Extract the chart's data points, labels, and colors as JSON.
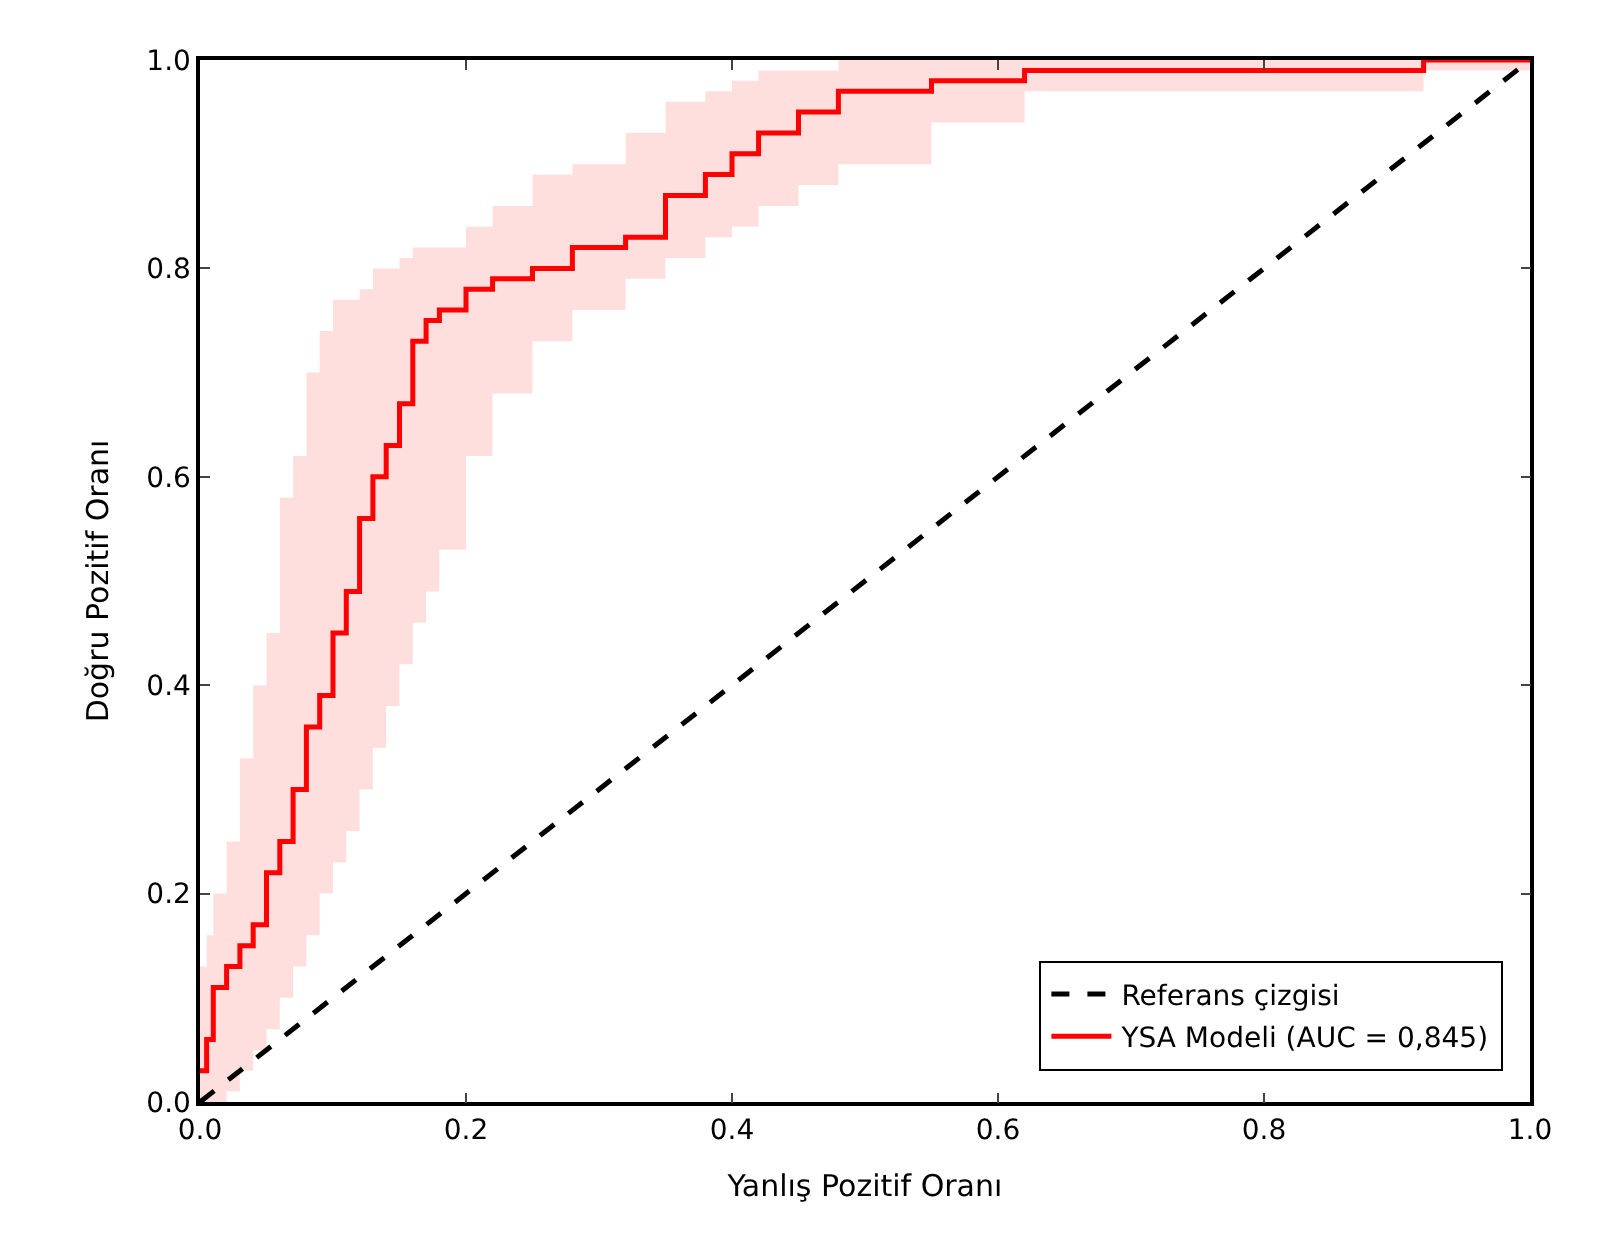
{
  "chart_data": {
    "type": "line",
    "xlabel": "Yanlış Pozitif Oranı",
    "ylabel": "Doğru Pozitif Oranı",
    "xlim": [
      0,
      1
    ],
    "ylim": [
      0,
      1
    ],
    "xticks": [
      {
        "value": 0,
        "label": "0.0"
      },
      {
        "value": 0.2,
        "label": "0.2"
      },
      {
        "value": 0.4,
        "label": "0.4"
      },
      {
        "value": 0.6,
        "label": "0.6"
      },
      {
        "value": 0.8,
        "label": "0.8"
      },
      {
        "value": 1,
        "label": "1.0"
      }
    ],
    "yticks": [
      {
        "value": 0,
        "label": "0.0"
      },
      {
        "value": 0.2,
        "label": "0.2"
      },
      {
        "value": 0.4,
        "label": "0.4"
      },
      {
        "value": 0.6,
        "label": "0.6"
      },
      {
        "value": 0.8,
        "label": "0.8"
      },
      {
        "value": 1,
        "label": "1.0"
      }
    ],
    "legend": "bottom right",
    "marker": "none",
    "series": [
      {
        "name": "Referans çizgisi",
        "line_style": "dashed",
        "color": "#000000",
        "x": [
          0,
          1
        ],
        "values": [
          0,
          1
        ]
      },
      {
        "name": "YSA Modeli (AUC = 0,845)",
        "type": "step",
        "line_style": "solid",
        "color": "#ff0000",
        "x": [
          0,
          0.005,
          0.01,
          0.02,
          0.03,
          0.04,
          0.05,
          0.06,
          0.07,
          0.08,
          0.09,
          0.1,
          0.11,
          0.12,
          0.13,
          0.14,
          0.15,
          0.16,
          0.17,
          0.18,
          0.2,
          0.22,
          0.25,
          0.28,
          0.32,
          0.35,
          0.38,
          0.4,
          0.42,
          0.45,
          0.48,
          0.55,
          0.62,
          0.92,
          1.0
        ],
        "values": [
          0.03,
          0.06,
          0.11,
          0.13,
          0.15,
          0.17,
          0.22,
          0.25,
          0.3,
          0.36,
          0.39,
          0.45,
          0.49,
          0.56,
          0.6,
          0.63,
          0.67,
          0.73,
          0.75,
          0.76,
          0.78,
          0.79,
          0.8,
          0.82,
          0.83,
          0.87,
          0.89,
          0.91,
          0.93,
          0.95,
          0.97,
          0.98,
          0.99,
          1.0,
          1.0
        ],
        "upper": [
          0.13,
          0.16,
          0.2,
          0.25,
          0.33,
          0.4,
          0.45,
          0.58,
          0.62,
          0.7,
          0.74,
          0.77,
          0.77,
          0.78,
          0.8,
          0.8,
          0.81,
          0.82,
          0.82,
          0.82,
          0.84,
          0.86,
          0.89,
          0.9,
          0.93,
          0.96,
          0.97,
          0.98,
          0.99,
          0.99,
          1.0,
          1.0,
          1.0,
          1.0,
          1.0
        ],
        "lower": [
          0,
          0,
          0,
          0.01,
          0.03,
          0.05,
          0.07,
          0.1,
          0.13,
          0.16,
          0.2,
          0.23,
          0.26,
          0.3,
          0.34,
          0.38,
          0.42,
          0.46,
          0.49,
          0.53,
          0.62,
          0.68,
          0.73,
          0.76,
          0.79,
          0.81,
          0.83,
          0.84,
          0.86,
          0.88,
          0.9,
          0.94,
          0.97,
          0.99,
          1.0
        ]
      }
    ]
  }
}
